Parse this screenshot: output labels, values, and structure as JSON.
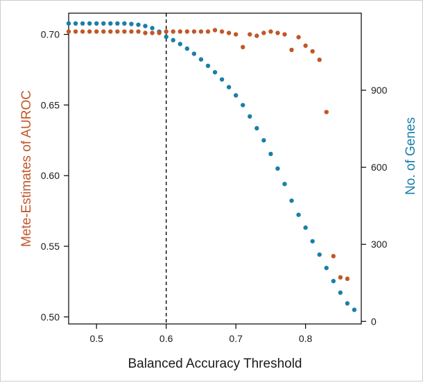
{
  "chart_data": {
    "type": "scatter",
    "xlabel": "Balanced Accuracy Threshold",
    "ylabel_left": "Mete-Estimates of AUROC",
    "ylabel_right": "No. of Genes",
    "xlim": [
      0.46,
      0.88
    ],
    "ylim_left": [
      0.495,
      0.715
    ],
    "ylim_right": [
      -10,
      1200
    ],
    "x_ticks": [
      0.5,
      0.6,
      0.7,
      0.8
    ],
    "x_tick_labels": [
      "0.5",
      "0.6",
      "0.7",
      "0.8"
    ],
    "y_left_ticks": [
      0.5,
      0.55,
      0.6,
      0.65,
      0.7
    ],
    "y_left_tick_labels": [
      "0.50",
      "0.55",
      "0.60",
      "0.65",
      "0.70"
    ],
    "y_right_ticks": [
      0,
      300,
      600,
      900
    ],
    "y_right_tick_labels": [
      "0",
      "300",
      "600",
      "900"
    ],
    "reference_line": {
      "x": 0.6,
      "style": "dashed",
      "color": "#000000"
    },
    "grid": false,
    "colors": {
      "auroc": "#c0582a",
      "genes": "#1a7fa6",
      "axis": "#000000"
    },
    "series": [
      {
        "axis": "left",
        "x": [
          0.46,
          0.47,
          0.48,
          0.49,
          0.5,
          0.51,
          0.52,
          0.53,
          0.54,
          0.55,
          0.56,
          0.57,
          0.58,
          0.59,
          0.6,
          0.61,
          0.62,
          0.63,
          0.64,
          0.65,
          0.66,
          0.67,
          0.68,
          0.69,
          0.7,
          0.71,
          0.72,
          0.73,
          0.74,
          0.75,
          0.76,
          0.77,
          0.78,
          0.79,
          0.8,
          0.81,
          0.82,
          0.83,
          0.84,
          0.85,
          0.86
        ],
        "values": [
          0.702,
          0.702,
          0.702,
          0.702,
          0.702,
          0.702,
          0.702,
          0.702,
          0.702,
          0.702,
          0.702,
          0.701,
          0.701,
          0.701,
          0.702,
          0.702,
          0.702,
          0.702,
          0.702,
          0.702,
          0.702,
          0.703,
          0.702,
          0.701,
          0.7,
          0.691,
          0.7,
          0.699,
          0.701,
          0.702,
          0.701,
          0.7,
          0.689,
          0.698,
          0.692,
          0.688,
          0.682,
          0.645,
          0.543,
          0.528,
          0.527
        ]
      },
      {
        "axis": "right",
        "x": [
          0.46,
          0.47,
          0.48,
          0.49,
          0.5,
          0.51,
          0.52,
          0.53,
          0.54,
          0.55,
          0.56,
          0.57,
          0.58,
          0.59,
          0.6,
          0.61,
          0.62,
          0.63,
          0.64,
          0.65,
          0.66,
          0.67,
          0.68,
          0.69,
          0.7,
          0.71,
          0.72,
          0.73,
          0.74,
          0.75,
          0.76,
          0.77,
          0.78,
          0.79,
          0.8,
          0.81,
          0.82,
          0.83,
          0.84,
          0.85,
          0.86,
          0.87
        ],
        "values": [
          1160,
          1160,
          1160,
          1160,
          1160,
          1160,
          1160,
          1160,
          1160,
          1158,
          1155,
          1150,
          1142,
          1128,
          1108,
          1095,
          1080,
          1062,
          1042,
          1020,
          995,
          970,
          942,
          912,
          880,
          842,
          798,
          752,
          705,
          652,
          595,
          535,
          470,
          415,
          365,
          312,
          260,
          208,
          157,
          112,
          70,
          45
        ]
      }
    ]
  }
}
